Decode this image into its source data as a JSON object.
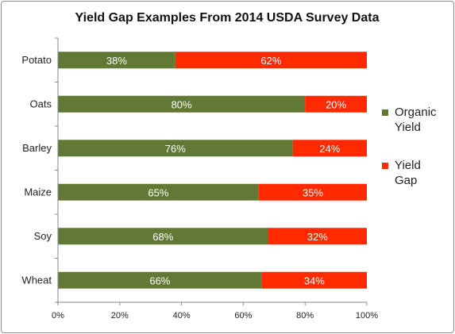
{
  "chart_data": {
    "type": "bar",
    "orientation": "horizontal",
    "stacked": true,
    "title": "Yield Gap Examples From 2014 USDA Survey Data",
    "xlabel": "",
    "ylabel": "",
    "xlim": [
      0,
      100
    ],
    "x_ticks": [
      "0%",
      "20%",
      "40%",
      "60%",
      "80%",
      "100%"
    ],
    "categories": [
      "Potato",
      "Oats",
      "Barley",
      "Maize",
      "Soy",
      "Wheat"
    ],
    "series": [
      {
        "name": "Organic Yield",
        "name_lines": [
          "Organic",
          "Yield"
        ],
        "color": "#627835",
        "values": [
          38,
          80,
          76,
          65,
          68,
          66
        ],
        "labels": [
          "38%",
          "80%",
          "76%",
          "65%",
          "68%",
          "66%"
        ]
      },
      {
        "name": "Yield Gap",
        "name_lines": [
          "Yield",
          "Gap"
        ],
        "color": "#ff2a00",
        "values": [
          62,
          20,
          24,
          35,
          32,
          34
        ],
        "labels": [
          "62%",
          "20%",
          "24%",
          "35%",
          "32%",
          "34%"
        ]
      }
    ],
    "legend": "right",
    "grid": false
  }
}
